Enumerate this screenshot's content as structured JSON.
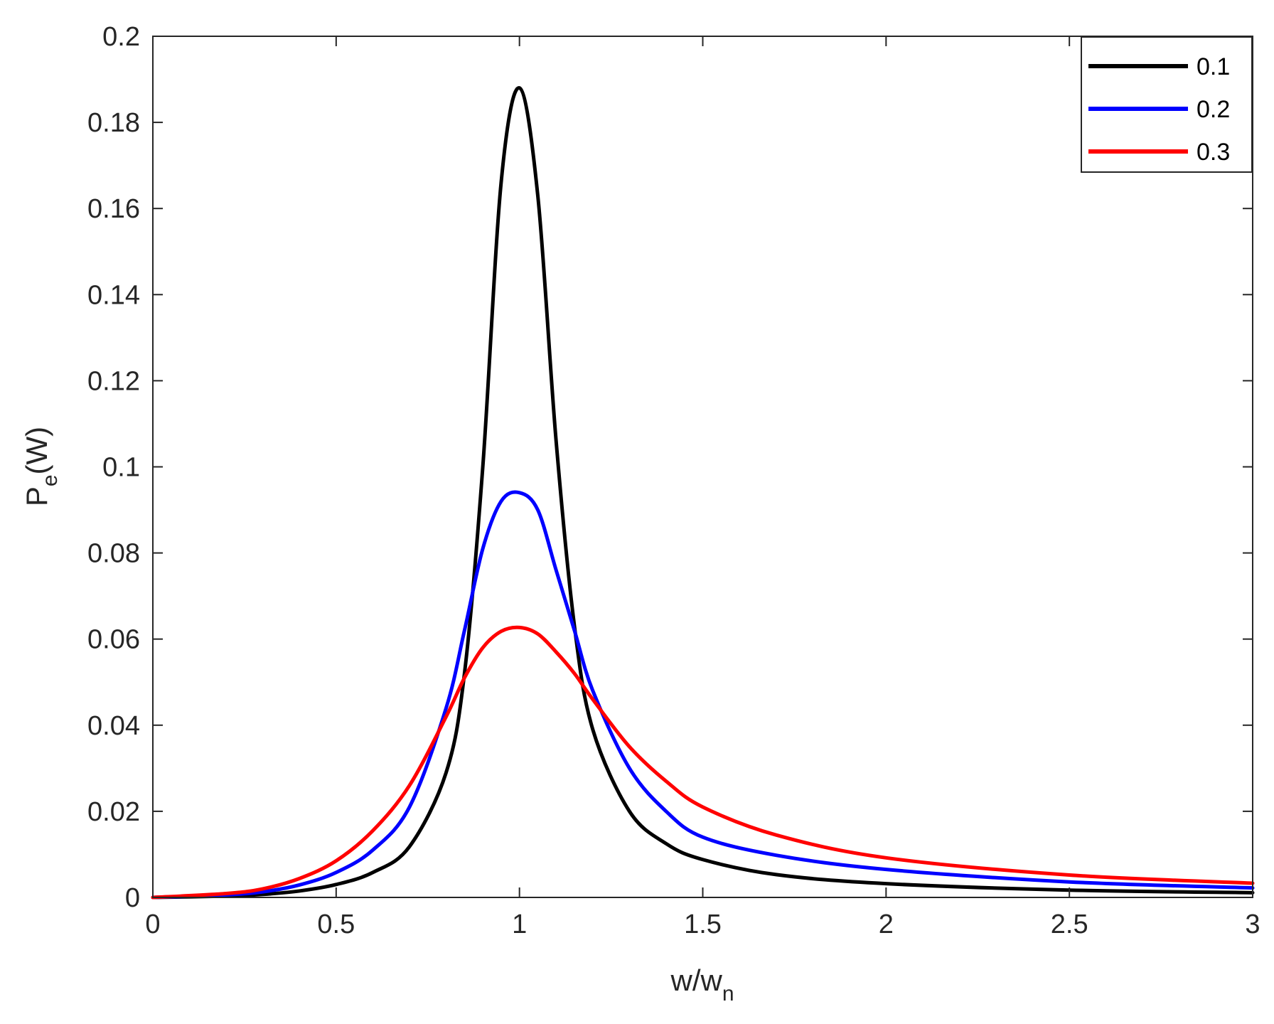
{
  "chart_data": {
    "type": "line",
    "title": "",
    "xlabel": {
      "main": "w/w",
      "sub": "n"
    },
    "ylabel": {
      "main": "P",
      "sub": "e",
      "rest": "(W)"
    },
    "xlim": [
      0,
      3
    ],
    "ylim": [
      0,
      0.2
    ],
    "xticks": [
      0,
      0.5,
      1,
      1.5,
      2,
      2.5,
      3
    ],
    "yticks": [
      0,
      0.02,
      0.04,
      0.06,
      0.08,
      0.1,
      0.12,
      0.14,
      0.16,
      0.18,
      0.2
    ],
    "xtick_labels": [
      "0",
      "0.5",
      "1",
      "1.5",
      "2",
      "2.5",
      "3"
    ],
    "ytick_labels": [
      "0",
      "0.02",
      "0.04",
      "0.06",
      "0.08",
      "0.1",
      "0.12",
      "0.14",
      "0.16",
      "0.18",
      "0.2"
    ],
    "grid": false,
    "legend_position": "top-right",
    "x": [
      0,
      0.2,
      0.3,
      0.4,
      0.5,
      0.6,
      0.7,
      0.8,
      0.85,
      0.9,
      0.95,
      1.0,
      1.05,
      1.1,
      1.15,
      1.2,
      1.3,
      1.4,
      1.5,
      1.7,
      2.0,
      2.5,
      3.0
    ],
    "series": [
      {
        "name": "0.1",
        "color": "#000000",
        "values": [
          0,
          0.0003,
          0.0007,
          0.0015,
          0.003,
          0.0058,
          0.0118,
          0.029,
          0.052,
          0.1,
          0.166,
          0.188,
          0.163,
          0.106,
          0.063,
          0.039,
          0.02,
          0.0125,
          0.0088,
          0.0053,
          0.0032,
          0.0017,
          0.0011
        ]
      },
      {
        "name": "0.2",
        "color": "#0000ff",
        "values": [
          0,
          0.0006,
          0.0013,
          0.0029,
          0.0058,
          0.011,
          0.021,
          0.044,
          0.062,
          0.081,
          0.092,
          0.094,
          0.09,
          0.076,
          0.062,
          0.048,
          0.03,
          0.02,
          0.014,
          0.0098,
          0.0065,
          0.0036,
          0.0022
        ]
      },
      {
        "name": "0.3",
        "color": "#ff0000",
        "values": [
          0,
          0.0009,
          0.002,
          0.0044,
          0.0085,
          0.0155,
          0.026,
          0.042,
          0.051,
          0.058,
          0.0618,
          0.0627,
          0.0612,
          0.057,
          0.052,
          0.046,
          0.035,
          0.027,
          0.021,
          0.0145,
          0.0092,
          0.0052,
          0.0033
        ]
      }
    ]
  }
}
